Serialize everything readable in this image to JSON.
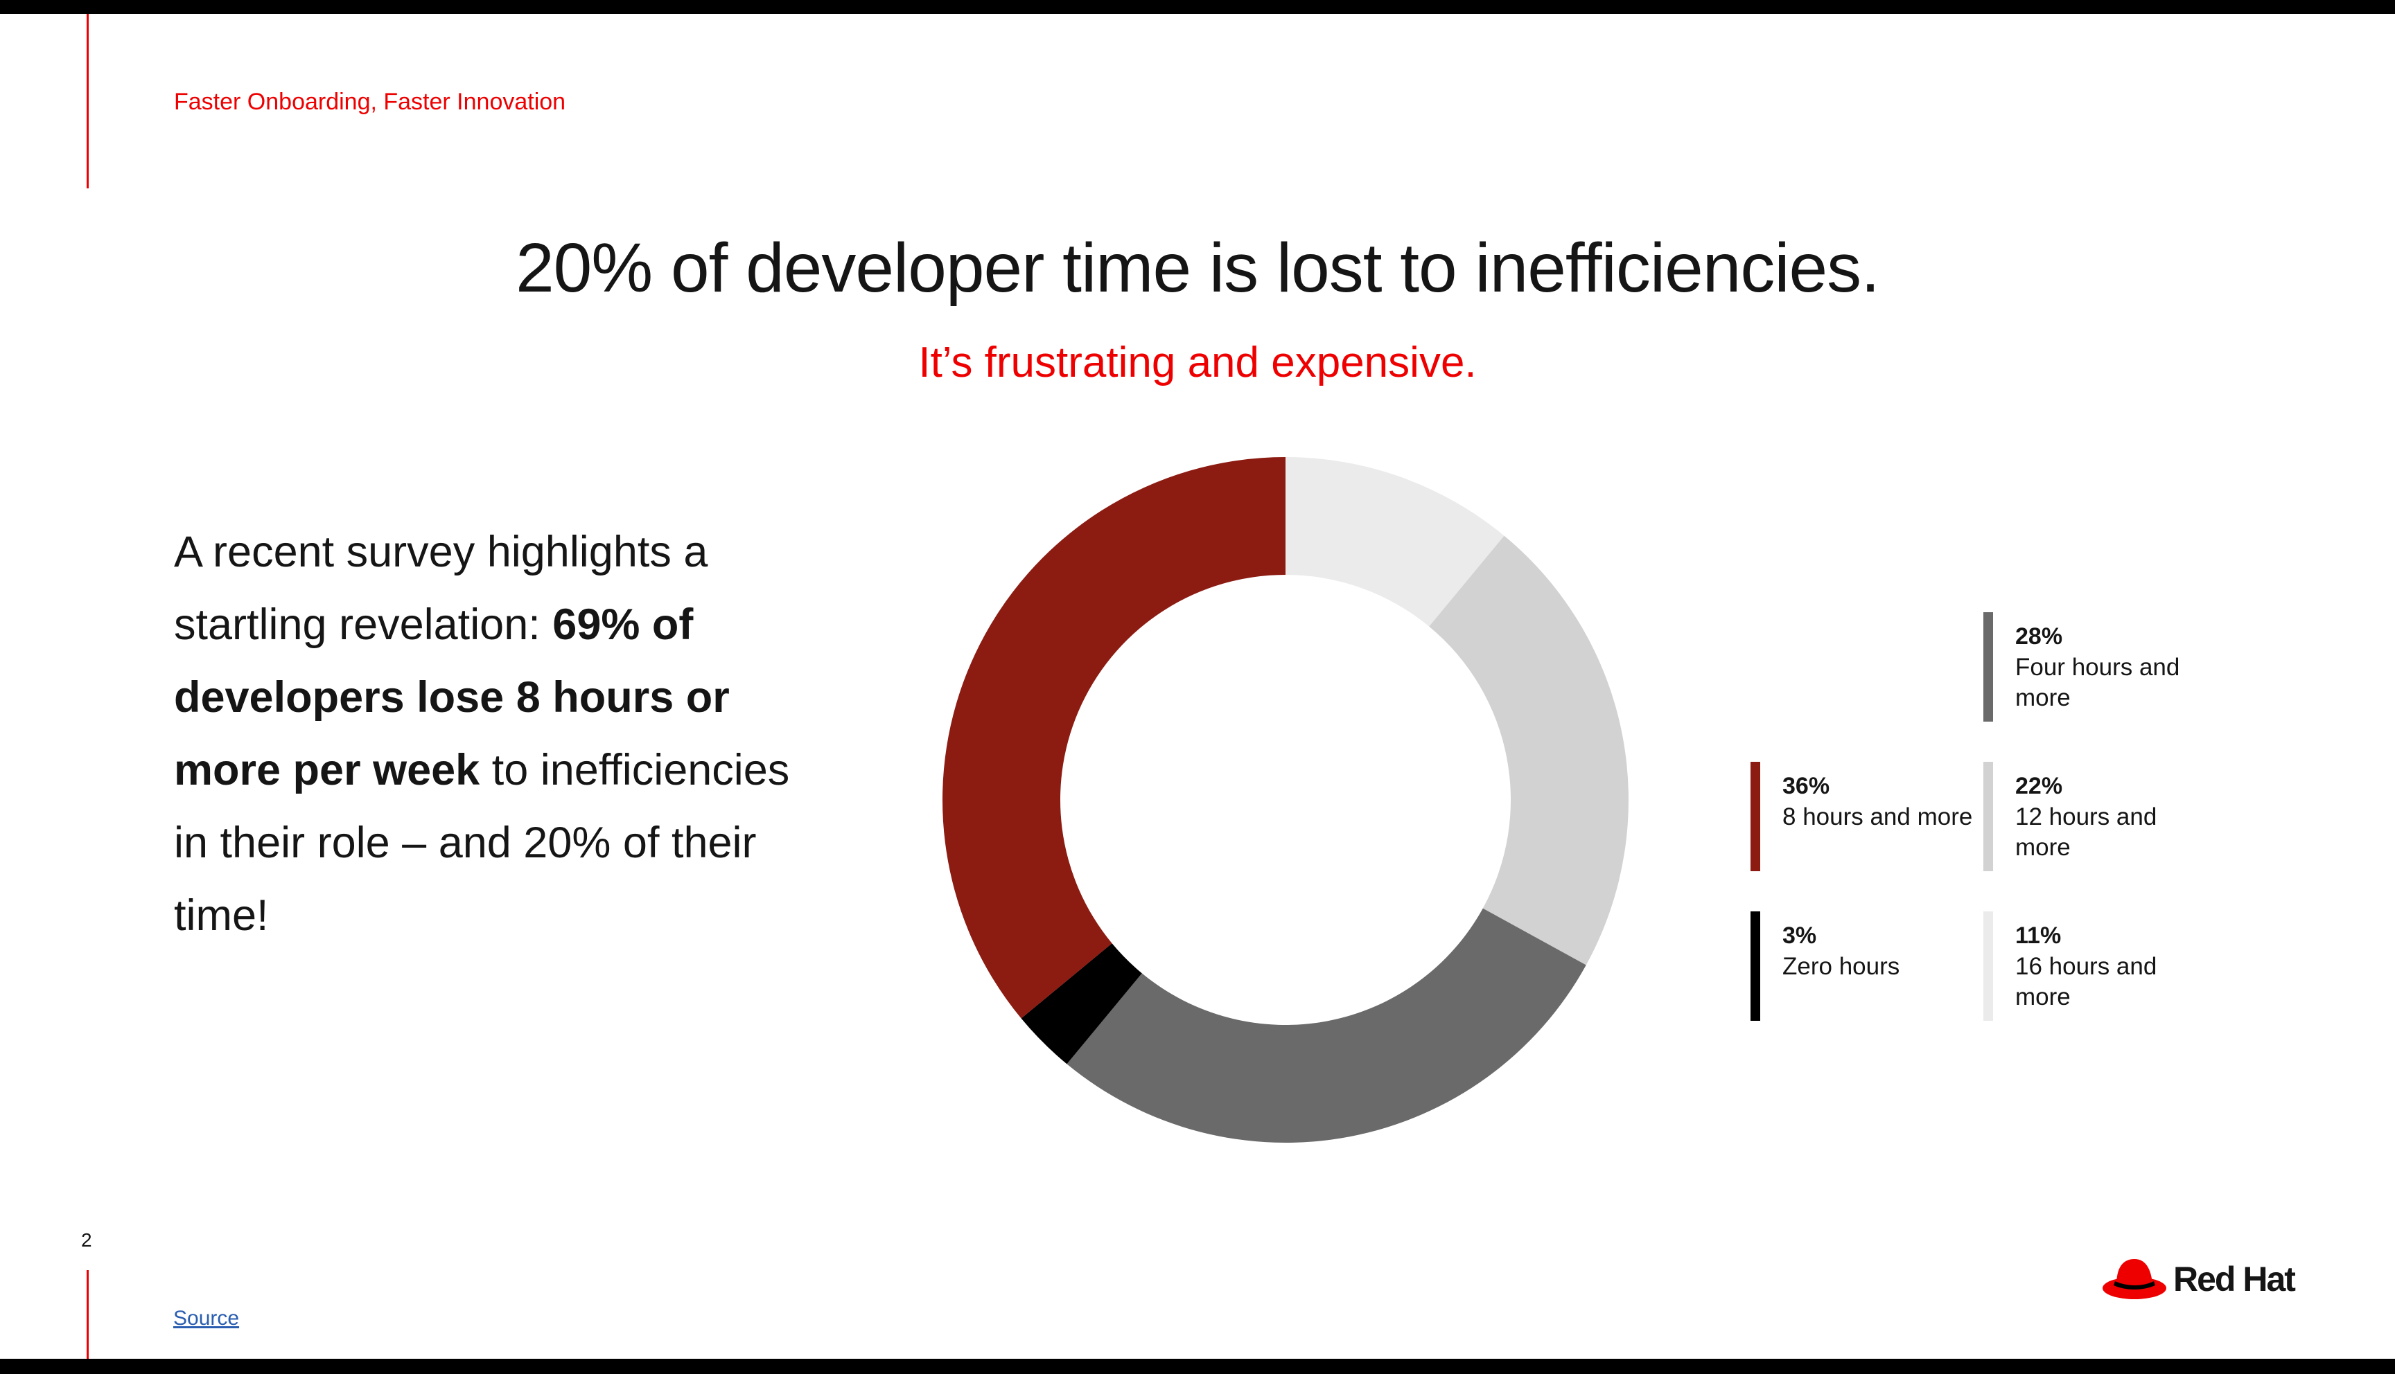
{
  "slide": {
    "section_label": "Faster Onboarding, Faster Innovation",
    "headline": "20% of developer time is lost to inefficiencies.",
    "subhead": "It’s frustrating and expensive.",
    "body": {
      "part1": "A recent survey highlights a startling revelation: ",
      "bold": "69% of developers lose 8 hours or more per week",
      "part2": " to inefficiencies in their role – and 20% of their time!"
    },
    "page_number": "2",
    "source_label": "Source",
    "logo_text": "Red Hat"
  },
  "chart_data": {
    "type": "pie",
    "subtype": "donut",
    "categories": [
      "16 hours and more",
      "12 hours and more",
      "Four hours and more",
      "Zero hours",
      "8 hours and more"
    ],
    "values": [
      11,
      22,
      28,
      3,
      36
    ],
    "colors": [
      "#ebebeb",
      "#d2d2d2",
      "#6a6a6a",
      "#000000",
      "#8c1b12"
    ],
    "start_angle": 0,
    "direction": "clockwise",
    "legend_position": "right",
    "legend": [
      {
        "pct": "28%",
        "label": "Four hours and more",
        "color": "#6a6a6a"
      },
      {
        "pct": "36%",
        "label": "8 hours and more",
        "color": "#8c1b12"
      },
      {
        "pct": "22%",
        "label": "12 hours and more",
        "color": "#d2d2d2"
      },
      {
        "pct": "3%",
        "label": "Zero hours",
        "color": "#000000"
      },
      {
        "pct": "11%",
        "label": "16 hours and more",
        "color": "#ebebeb"
      }
    ]
  },
  "colors": {
    "accent": "#ee0000",
    "text": "#151515",
    "link": "#2a5db0",
    "logo_red": "#ee0000"
  },
  "icons": {
    "logo": "red-hat-fedora-icon"
  }
}
